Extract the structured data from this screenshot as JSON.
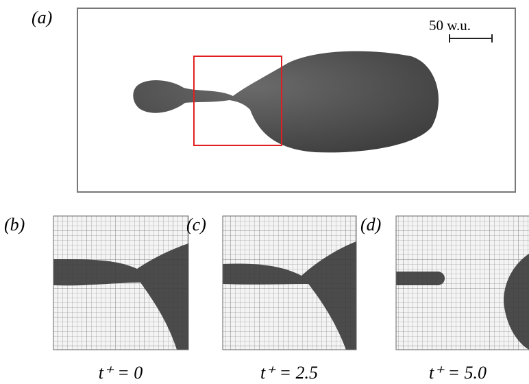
{
  "panels": [
    {
      "label": "(a)",
      "scale_bar": "50 w.u."
    },
    {
      "label": "(b)",
      "caption": "t⁺ = 0"
    },
    {
      "label": "(c)",
      "caption": "t⁺ = 2.5"
    },
    {
      "label": "(d)",
      "caption": "t⁺ = 5.0"
    }
  ]
}
